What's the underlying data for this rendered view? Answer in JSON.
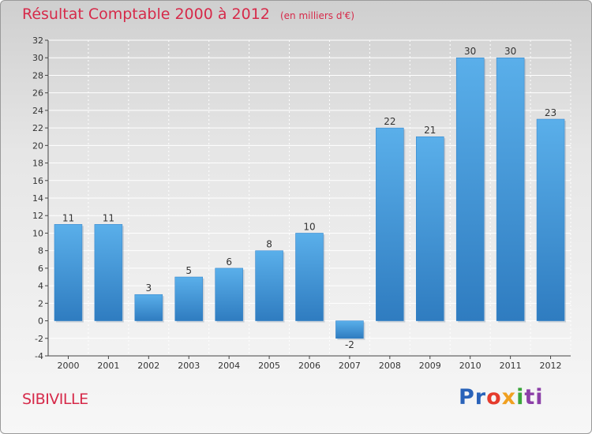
{
  "title": "Résultat Comptable 2000 à 2012",
  "unit": "(en milliers d'€)",
  "commune": "SIBIVILLE",
  "logo": {
    "p1": "Pr",
    "p2": "o",
    "p3": "x",
    "p4": "i",
    "p5": "ti"
  },
  "colors": {
    "bar": "#4a9ee0",
    "bar_edge": "#2f7fc7",
    "title": "#d62a4a",
    "grid": "#ffffff"
  },
  "chart_data": {
    "type": "bar",
    "title": "Résultat Comptable 2000 à 2012",
    "xlabel": "",
    "ylabel": "(en milliers d'€)",
    "ylim": [
      -4,
      32
    ],
    "yticks": [
      -4,
      -2,
      0,
      2,
      4,
      6,
      8,
      10,
      12,
      14,
      16,
      18,
      20,
      22,
      24,
      26,
      28,
      30,
      32
    ],
    "categories": [
      "2000",
      "2001",
      "2002",
      "2003",
      "2004",
      "2005",
      "2006",
      "2007",
      "2008",
      "2009",
      "2010",
      "2011",
      "2012"
    ],
    "values": [
      11,
      11,
      3,
      5,
      6,
      8,
      10,
      -2,
      22,
      21,
      30,
      30,
      23
    ],
    "grid": true,
    "legend": "none"
  }
}
